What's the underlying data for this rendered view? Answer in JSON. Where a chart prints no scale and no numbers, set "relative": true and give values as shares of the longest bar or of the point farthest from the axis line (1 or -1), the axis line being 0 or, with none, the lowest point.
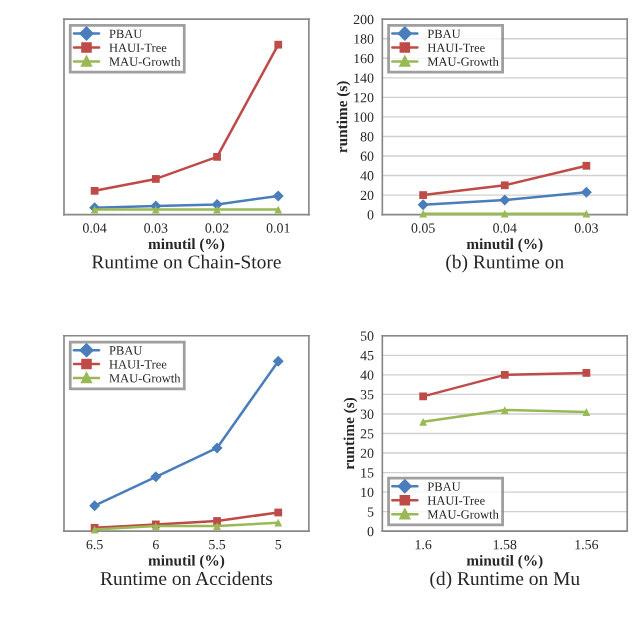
{
  "chart_data": [
    {
      "type": "line",
      "title": "Runtime on Chain-Store",
      "xlabel": "minutil (%)",
      "categories": [
        "0.04",
        "0.03",
        "0.02",
        "0.01"
      ],
      "relative": true,
      "grid": "y",
      "legend": "top left",
      "series": [
        {
          "name": "PBAU",
          "color": "#4a7ebb",
          "marker": "diamond",
          "values": [
            0.04,
            0.05,
            0.06,
            0.11
          ]
        },
        {
          "name": "HAUI-Tree",
          "color": "#be4b48",
          "marker": "square",
          "values": [
            0.14,
            0.21,
            0.34,
            1
          ]
        },
        {
          "name": "MAU-Growth",
          "color": "#98b954",
          "marker": "triangle",
          "values": [
            0.03,
            0.03,
            0.03,
            0.03
          ]
        }
      ]
    },
    {
      "type": "line",
      "title": "(b) Runtime on",
      "xlabel": "minutil (%)",
      "ylabel": "runtime (s)",
      "categories": [
        "0.05",
        "0.04",
        "0.03"
      ],
      "ylim": [
        0,
        200
      ],
      "yticks": [
        0,
        20,
        40,
        60,
        80,
        100,
        120,
        140,
        160,
        180,
        200
      ],
      "grid": "y",
      "legend": "top left",
      "series": [
        {
          "name": "PBAU",
          "color": "#4a7ebb",
          "marker": "diamond",
          "values": [
            10,
            15,
            23
          ]
        },
        {
          "name": "HAUI-Tree",
          "color": "#be4b48",
          "marker": "square",
          "values": [
            20,
            30,
            50
          ]
        },
        {
          "name": "MAU-Growth",
          "color": "#98b954",
          "marker": "triangle",
          "values": [
            1,
            1,
            1
          ]
        }
      ]
    },
    {
      "type": "line",
      "title": "Runtime on Accidents",
      "xlabel": "minutil (%)",
      "categories": [
        "6.5",
        "6",
        "5.5",
        "5"
      ],
      "relative": true,
      "grid": "y",
      "legend": "top left",
      "series": [
        {
          "name": "PBAU",
          "color": "#4a7ebb",
          "marker": "diamond",
          "values": [
            0.15,
            0.32,
            0.49,
            1
          ]
        },
        {
          "name": "HAUI-Tree",
          "color": "#be4b48",
          "marker": "square",
          "values": [
            0.02,
            0.04,
            0.06,
            0.11
          ]
        },
        {
          "name": "MAU-Growth",
          "color": "#98b954",
          "marker": "triangle",
          "values": [
            0.01,
            0.03,
            0.03,
            0.05
          ]
        }
      ]
    },
    {
      "type": "line",
      "title": "(d) Runtime on Mu",
      "xlabel": "minutil (%)",
      "ylabel": "runtime (s)",
      "categories": [
        "1.6",
        "1.58",
        "1.56"
      ],
      "ylim": [
        0,
        50
      ],
      "yticks": [
        0,
        5,
        10,
        15,
        20,
        25,
        30,
        35,
        40,
        45,
        50
      ],
      "grid": "y",
      "legend": "bottom left",
      "series": [
        {
          "name": "PBAU",
          "color": "#4a7ebb",
          "marker": "diamond",
          "values": [
            null,
            null,
            null
          ]
        },
        {
          "name": "HAUI-Tree",
          "color": "#be4b48",
          "marker": "square",
          "values": [
            34.5,
            40,
            40.5
          ]
        },
        {
          "name": "MAU-Growth",
          "color": "#98b954",
          "marker": "triangle",
          "values": [
            28,
            31,
            30.5
          ]
        }
      ]
    }
  ]
}
